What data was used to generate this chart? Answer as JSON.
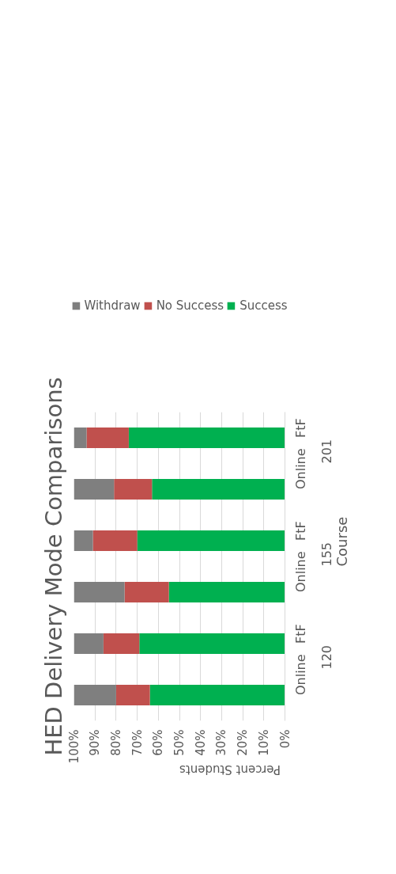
{
  "chart_data": {
    "type": "bar",
    "orientation": "horizontal",
    "stacked": true,
    "title": "HED Delivery Mode Comparisons",
    "xlabel": "Percent Students",
    "ylabel": "Course",
    "categories": [
      "FtF",
      "Online",
      "FtF",
      "Online",
      "FtF",
      "Online"
    ],
    "annotations": [
      "201",
      "155",
      "120"
    ],
    "series": [
      {
        "name": "Success",
        "color": "#00b050",
        "values": [
          74,
          63,
          70,
          55,
          69,
          64
        ]
      },
      {
        "name": "No Success",
        "color": "#c0504d",
        "values": [
          20,
          18,
          21,
          21,
          17,
          16
        ]
      },
      {
        "name": "Withdraw",
        "color": "#7f7f7f",
        "values": [
          6,
          19,
          9,
          24,
          14,
          20
        ]
      }
    ],
    "xlim": [
      100,
      0
    ],
    "xticks": [
      {
        "value": 0,
        "label": "0%"
      },
      {
        "value": 10,
        "label": "10%"
      },
      {
        "value": 20,
        "label": "20%"
      },
      {
        "value": 30,
        "label": "30%"
      },
      {
        "value": 40,
        "label": "40%"
      },
      {
        "value": 50,
        "label": "50%"
      },
      {
        "value": 60,
        "label": "60%"
      },
      {
        "value": 70,
        "label": "70%"
      },
      {
        "value": 80,
        "label": "80%"
      },
      {
        "value": 90,
        "label": "90%"
      },
      {
        "value": 100,
        "label": "100%"
      }
    ],
    "grid": "x",
    "legend": "top"
  }
}
